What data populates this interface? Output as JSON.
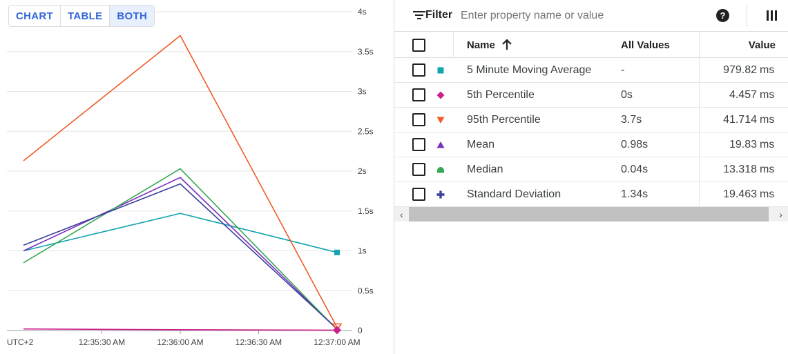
{
  "view_toggle": {
    "chart_label": "CHART",
    "table_label": "TABLE",
    "both_label": "BOTH",
    "active": "both"
  },
  "chart_data": {
    "type": "line",
    "x_ticks": [
      "12:35:30 AM",
      "12:36:00 AM",
      "12:36:30 AM",
      "12:37:00 AM"
    ],
    "x_tick_seconds": [
      30,
      60,
      90,
      120
    ],
    "timezone_label": "UTC+2",
    "y_ticks": [
      "0",
      "0.5s",
      "1s",
      "1.5s",
      "2s",
      "2.5s",
      "3s",
      "3.5s",
      "4s"
    ],
    "y_tick_values": [
      0,
      0.5,
      1,
      1.5,
      2,
      2.5,
      3,
      3.5,
      4
    ],
    "ylim": [
      0,
      4
    ],
    "y_unit": "s",
    "grid": true,
    "series": [
      {
        "name": "5 Minute Moving Average",
        "color": "#12a4af",
        "marker": "square",
        "points": [
          [
            0,
            1.0
          ],
          [
            60,
            1.47
          ],
          [
            120,
            0.98
          ]
        ]
      },
      {
        "name": "5th Percentile",
        "color": "#cc1f8b",
        "marker": "diamond",
        "points": [
          [
            0,
            0.02
          ],
          [
            60,
            0.01
          ],
          [
            120,
            0.005
          ]
        ]
      },
      {
        "name": "95th Percentile",
        "color": "#f05a28",
        "marker": "triangle-down",
        "points": [
          [
            0,
            2.13
          ],
          [
            60,
            3.7
          ],
          [
            120,
            0.04
          ]
        ]
      },
      {
        "name": "Mean",
        "color": "#7b2fbe",
        "marker": "triangle-up",
        "points": [
          [
            0,
            1.0
          ],
          [
            60,
            1.92
          ],
          [
            120,
            0.02
          ]
        ]
      },
      {
        "name": "Median",
        "color": "#34a853",
        "marker": "half-circle",
        "points": [
          [
            0,
            0.85
          ],
          [
            60,
            2.03
          ],
          [
            120,
            0.013
          ]
        ]
      },
      {
        "name": "Standard Deviation",
        "color": "#3a3f9a",
        "marker": "plus",
        "points": [
          [
            0,
            1.07
          ],
          [
            60,
            1.84
          ],
          [
            120,
            0.02
          ]
        ]
      }
    ]
  },
  "filter": {
    "label": "Filter",
    "placeholder": "Enter property name or value",
    "help_symbol": "?"
  },
  "table": {
    "headers": {
      "name": "Name",
      "all_values": "All Values",
      "value": "Value"
    },
    "sort": "name-ascending",
    "rows": [
      {
        "name": "5 Minute Moving Average",
        "all_values": "-",
        "value": "979.82",
        "unit": "ms",
        "color": "#12a4af",
        "marker": "square"
      },
      {
        "name": "5th Percentile",
        "all_values": "0s",
        "value": "4.457",
        "unit": "ms",
        "color": "#cc1f8b",
        "marker": "diamond"
      },
      {
        "name": "95th Percentile",
        "all_values": "3.7s",
        "value": "41.714",
        "unit": "ms",
        "color": "#f05a28",
        "marker": "triangle-down"
      },
      {
        "name": "Mean",
        "all_values": "0.98s",
        "value": "19.83",
        "unit": "ms",
        "color": "#7b2fbe",
        "marker": "triangle-up"
      },
      {
        "name": "Median",
        "all_values": "0.04s",
        "value": "13.318",
        "unit": "ms",
        "color": "#34a853",
        "marker": "half-circle"
      },
      {
        "name": "Standard Deviation",
        "all_values": "1.34s",
        "value": "19.463",
        "unit": "ms",
        "color": "#3a3f9a",
        "marker": "plus"
      }
    ]
  },
  "scrollbar": {
    "left_arrow": "‹",
    "right_arrow": "›"
  }
}
